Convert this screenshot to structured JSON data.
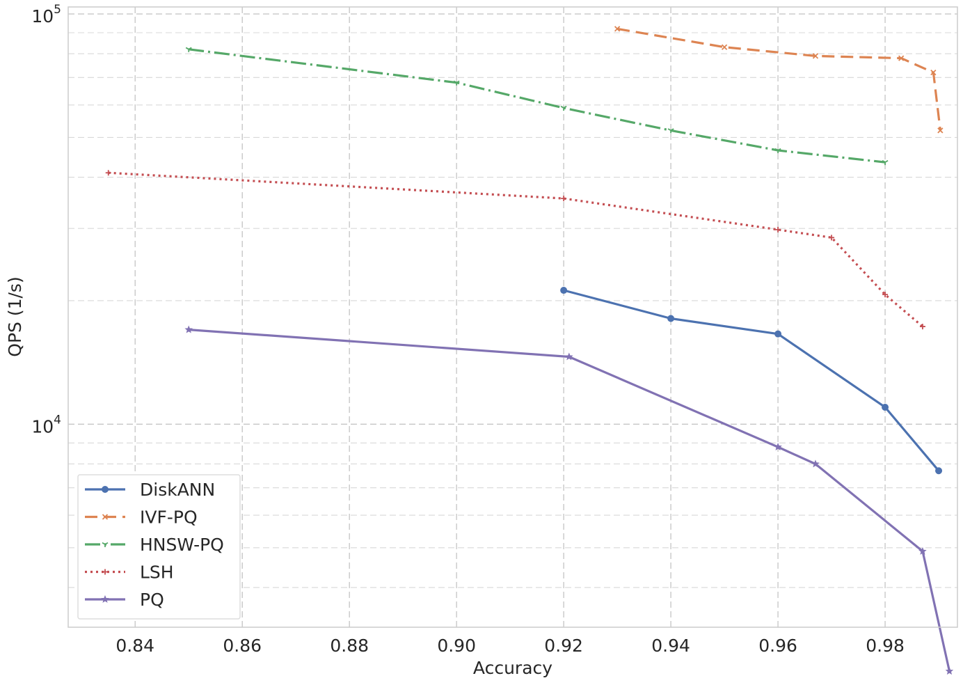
{
  "chart_data": {
    "type": "line",
    "title": "",
    "xlabel": "Accuracy",
    "ylabel": "QPS (1/s)",
    "xlim": [
      0.8275,
      0.9935
    ],
    "ylim": [
      3200,
      104000
    ],
    "yscale": "log",
    "grid": true,
    "legend_position": "lower-left",
    "x_ticks": [
      {
        "value": 0.84,
        "label": "0.84"
      },
      {
        "value": 0.86,
        "label": "0.86"
      },
      {
        "value": 0.88,
        "label": "0.88"
      },
      {
        "value": 0.9,
        "label": "0.90"
      },
      {
        "value": 0.92,
        "label": "0.92"
      },
      {
        "value": 0.94,
        "label": "0.94"
      },
      {
        "value": 0.96,
        "label": "0.96"
      },
      {
        "value": 0.98,
        "label": "0.98"
      }
    ],
    "y_major_ticks": [
      {
        "value": 10000,
        "base": "10",
        "exp": "4"
      },
      {
        "value": 100000,
        "base": "10",
        "exp": "5"
      }
    ],
    "series": [
      {
        "name": "DiskANN",
        "color": "#4c72b0",
        "dash": "",
        "marker": "circle",
        "x": [
          0.92,
          0.94,
          0.96,
          0.98,
          0.99
        ],
        "y": [
          21200,
          18100,
          16600,
          11000,
          7700
        ]
      },
      {
        "name": "IVF-PQ",
        "color": "#dd8452",
        "dash": "18,9",
        "marker": "x",
        "x": [
          0.93,
          0.95,
          0.967,
          0.983,
          0.989,
          0.9903
        ],
        "y": [
          92000,
          83000,
          79000,
          78000,
          72000,
          52000
        ]
      },
      {
        "name": "HNSW-PQ",
        "color": "#55a868",
        "dash": "22,6,3,6",
        "marker": "tri",
        "x": [
          0.85,
          0.9,
          0.92,
          0.94,
          0.96,
          0.98
        ],
        "y": [
          82000,
          68000,
          59000,
          52000,
          46500,
          43500
        ]
      },
      {
        "name": "LSH",
        "color": "#c44e52",
        "dash": "3,5",
        "marker": "plus",
        "x": [
          0.835,
          0.92,
          0.96,
          0.97,
          0.98,
          0.987
        ],
        "y": [
          41000,
          35500,
          29800,
          28500,
          20700,
          17300
        ]
      },
      {
        "name": "PQ",
        "color": "#8172b3",
        "dash": "",
        "marker": "star",
        "x": [
          0.85,
          0.921,
          0.96,
          0.967,
          0.987,
          0.992
        ],
        "y": [
          17000,
          14600,
          8800,
          8000,
          4900,
          2500
        ]
      }
    ]
  }
}
